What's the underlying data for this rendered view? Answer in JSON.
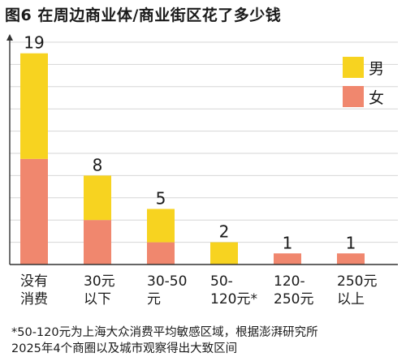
{
  "chart_data": {
    "type": "bar",
    "title": "图6 在周边商业体/商业街区花了多少钱",
    "categories": [
      [
        "没有",
        "消费"
      ],
      [
        "30元",
        "以下"
      ],
      [
        "30-50",
        "元"
      ],
      [
        "50-",
        "120元*"
      ],
      [
        "120-",
        "250元"
      ],
      [
        "250元",
        "以上"
      ]
    ],
    "series": [
      {
        "name": "女",
        "color": "#f0876e",
        "values": [
          9.5,
          4,
          2,
          0,
          1,
          1
        ]
      },
      {
        "name": "男",
        "color": "#f7d320",
        "values": [
          9.5,
          4,
          3,
          2,
          0,
          0
        ]
      }
    ],
    "totals": [
      19,
      8,
      5,
      2,
      1,
      1
    ],
    "ylim": [
      0,
      20
    ],
    "grid": true,
    "legend_position": "top-right",
    "legend_order": [
      "男",
      "女"
    ]
  },
  "footnote": [
    "*50-120元为上海大众消费平均敏感区域，根据澎湃研究所",
    "2025年4个商圈以及城市观察得出大致区间"
  ]
}
